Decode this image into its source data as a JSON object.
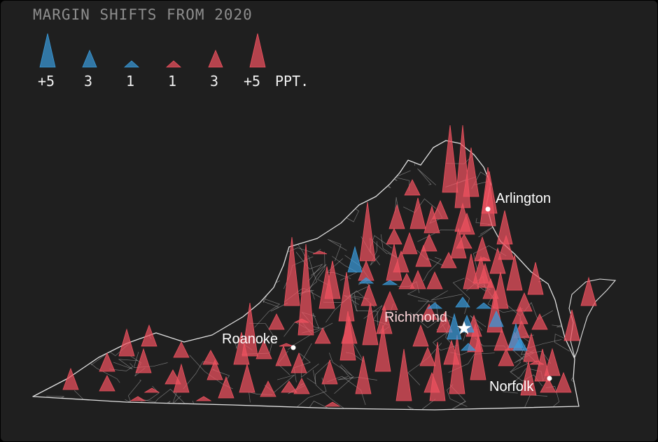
{
  "legend": {
    "title": "MARGIN SHIFTS FROM 2020",
    "items": [
      {
        "label": "+5",
        "party": "dem",
        "size": 5
      },
      {
        "label": "3",
        "party": "dem",
        "size": 3
      },
      {
        "label": "1",
        "party": "dem",
        "size": 1
      },
      {
        "label": "1",
        "party": "rep",
        "size": 1
      },
      {
        "label": "3",
        "party": "rep",
        "size": 3
      },
      {
        "label": "+5",
        "party": "rep",
        "size": 5
      }
    ],
    "unit": "PPT."
  },
  "colors": {
    "background": "#1f1f1f",
    "rep": "#f0525f",
    "dem": "#3a9ad9",
    "title": "#8e8e8e",
    "boundary": "#d8d8d8"
  },
  "cities": {
    "arlington": "Arlington",
    "richmond": "Richmond",
    "roanoke": "Roanoke",
    "norfolk": "Norfolk"
  }
}
